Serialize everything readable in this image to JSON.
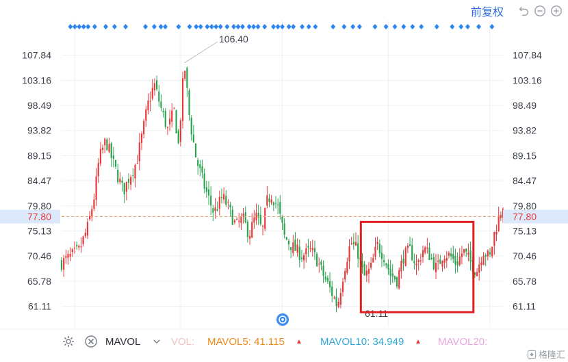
{
  "toolbar": {
    "adjust_label": "前复权",
    "icons": [
      "undo-icon",
      "zoom-out-icon",
      "zoom-in-icon"
    ]
  },
  "chart_data": {
    "type": "candlestick",
    "y_ticks": [
      "107.84",
      "103.16",
      "98.49",
      "93.82",
      "89.15",
      "84.47",
      "79.80",
      "75.13",
      "70.46",
      "65.78",
      "61.11"
    ],
    "ylim": [
      58.5,
      112.0
    ],
    "current_price": "77.80",
    "high_label": "106.40",
    "low_label": "61.11",
    "up_color": "#e8393b",
    "down_color": "#2aa44f",
    "grid": true,
    "highlight_box": {
      "x_range": [
        0.678,
        0.933
      ],
      "y_range": [
        60.0,
        76.8
      ],
      "color": "#e02020"
    },
    "price_path": [
      [
        0.0,
        69.2
      ],
      [
        0.04,
        71.5
      ],
      [
        0.06,
        76.0
      ],
      [
        0.075,
        82.0
      ],
      [
        0.085,
        88.5
      ],
      [
        0.1,
        92.0
      ],
      [
        0.12,
        87.0
      ],
      [
        0.14,
        82.5
      ],
      [
        0.155,
        85.5
      ],
      [
        0.17,
        88.0
      ],
      [
        0.185,
        94.0
      ],
      [
        0.195,
        98.5
      ],
      [
        0.21,
        102.5
      ],
      [
        0.225,
        98.0
      ],
      [
        0.24,
        94.0
      ],
      [
        0.255,
        97.5
      ],
      [
        0.265,
        91.0
      ],
      [
        0.278,
        106.4
      ],
      [
        0.29,
        96.0
      ],
      [
        0.305,
        88.5
      ],
      [
        0.325,
        83.0
      ],
      [
        0.345,
        78.5
      ],
      [
        0.365,
        81.5
      ],
      [
        0.38,
        79.0
      ],
      [
        0.395,
        76.0
      ],
      [
        0.41,
        77.5
      ],
      [
        0.425,
        74.5
      ],
      [
        0.44,
        78.0
      ],
      [
        0.455,
        75.0
      ],
      [
        0.465,
        80.5
      ],
      [
        0.475,
        82.0
      ],
      [
        0.49,
        79.5
      ],
      [
        0.505,
        74.0
      ],
      [
        0.525,
        72.0
      ],
      [
        0.545,
        70.5
      ],
      [
        0.565,
        71.5
      ],
      [
        0.58,
        69.5
      ],
      [
        0.595,
        66.5
      ],
      [
        0.61,
        64.0
      ],
      [
        0.625,
        61.1
      ],
      [
        0.64,
        68.0
      ],
      [
        0.655,
        73.0
      ],
      [
        0.67,
        71.5
      ],
      [
        0.685,
        66.5
      ],
      [
        0.7,
        68.0
      ],
      [
        0.715,
        72.5
      ],
      [
        0.73,
        70.5
      ],
      [
        0.745,
        67.0
      ],
      [
        0.76,
        66.0
      ],
      [
        0.775,
        70.5
      ],
      [
        0.79,
        71.5
      ],
      [
        0.805,
        68.5
      ],
      [
        0.82,
        72.0
      ],
      [
        0.835,
        70.5
      ],
      [
        0.85,
        68.0
      ],
      [
        0.865,
        71.0
      ],
      [
        0.88,
        70.5
      ],
      [
        0.895,
        69.0
      ],
      [
        0.91,
        71.5
      ],
      [
        0.925,
        69.5
      ],
      [
        0.94,
        67.5
      ],
      [
        0.955,
        71.5
      ],
      [
        0.97,
        70.0
      ],
      [
        0.98,
        74.5
      ],
      [
        0.992,
        78.0
      ],
      [
        1.0,
        80.0
      ]
    ],
    "event_markers": [
      0.02,
      0.03,
      0.04,
      0.05,
      0.06,
      0.075,
      0.1,
      0.12,
      0.145,
      0.19,
      0.21,
      0.225,
      0.235,
      0.265,
      0.29,
      0.305,
      0.315,
      0.33,
      0.34,
      0.35,
      0.36,
      0.375,
      0.39,
      0.4,
      0.41,
      0.425,
      0.435,
      0.445,
      0.46,
      0.48,
      0.49,
      0.5,
      0.515,
      0.525,
      0.545,
      0.56,
      0.575,
      0.615,
      0.64,
      0.66,
      0.675,
      0.71,
      0.735,
      0.755,
      0.775,
      0.795,
      0.815,
      0.85,
      0.885,
      0.905,
      0.92,
      0.945,
      0.975
    ]
  },
  "volume_bar": {
    "mavol_label": "MAVOL",
    "vol_label": "VOL:",
    "mavol5": "MAVOL5: 41.115",
    "mavol10": "MAVOL10: 34.949",
    "mavol20": "MAVOL20:",
    "mavol5_color": "#f08a18",
    "mavol10_color": "#2fa7d8",
    "mavol20_color": "#e9a6e0"
  },
  "watermark": {
    "text": "格隆汇"
  }
}
